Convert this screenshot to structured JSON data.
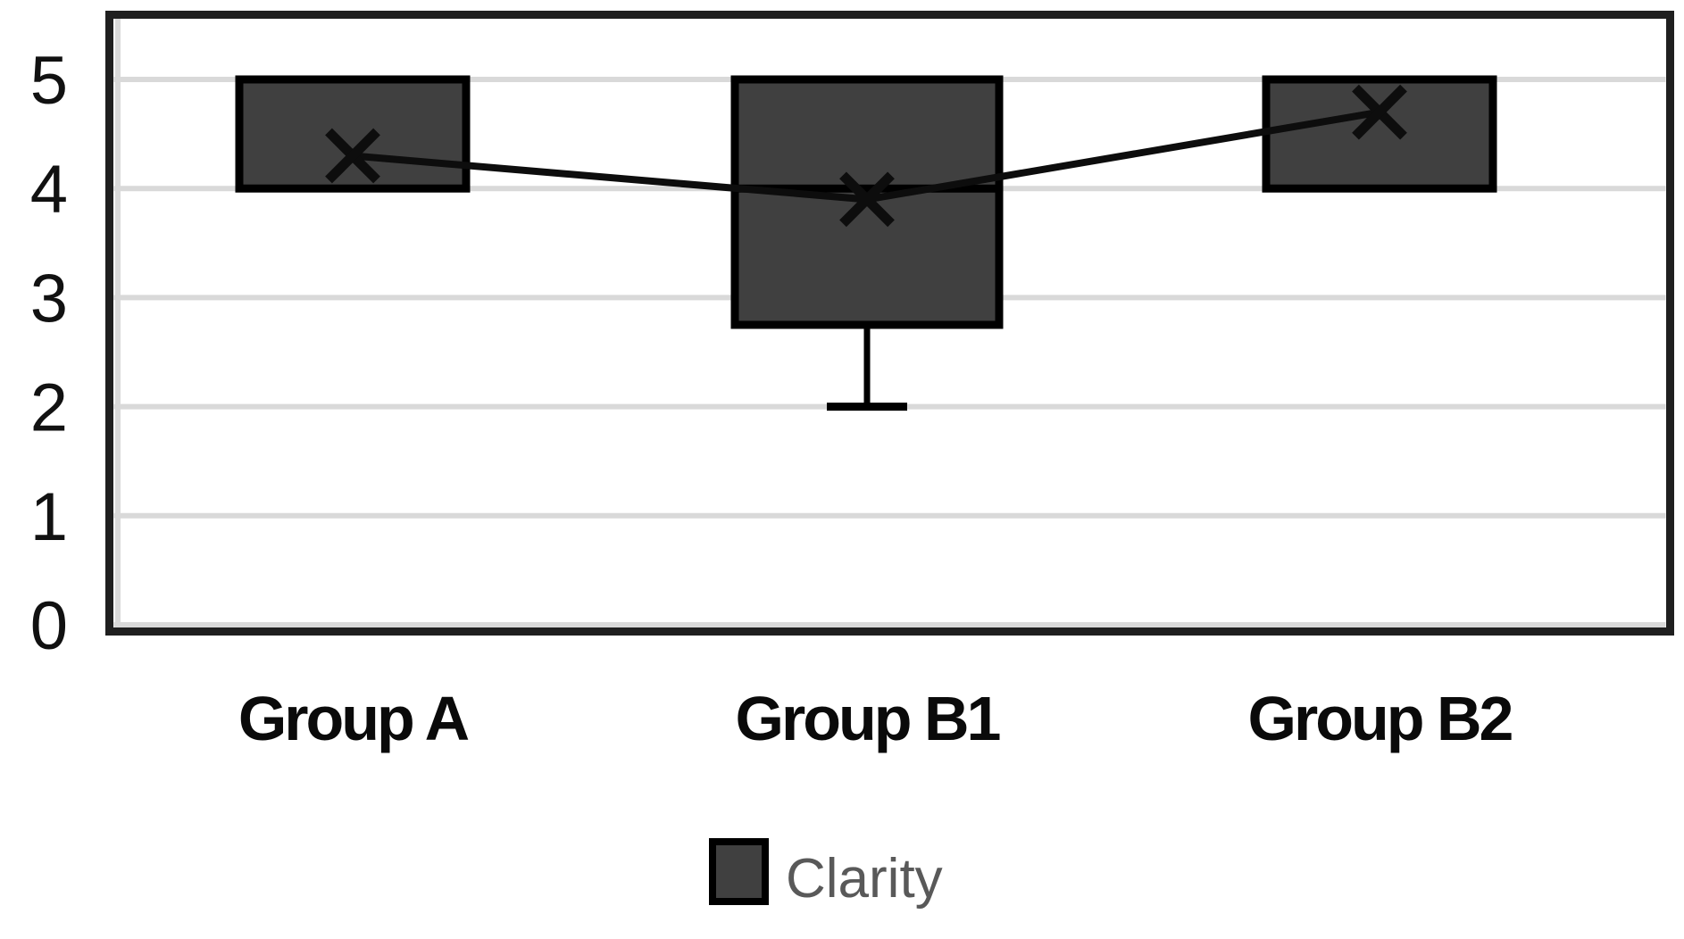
{
  "chart_data": {
    "type": "boxplot",
    "title": "",
    "categories": [
      "Group A",
      "Group B1",
      "Group B2"
    ],
    "y_axis": {
      "min": 0,
      "max": 5.6,
      "major_unit": 1,
      "ticks": [
        0,
        1,
        2,
        3,
        4,
        5
      ],
      "gridlines": true
    },
    "series_name": "Clarity",
    "groups": [
      {
        "label": "Group A",
        "q1": 4,
        "q3": 5,
        "median": null,
        "median_line_visible": false,
        "whisker_low": null,
        "whisker_high": null,
        "mean": 4.3
      },
      {
        "label": "Group B1",
        "q1": 2.75,
        "q3": 5,
        "median": 4,
        "median_line_visible": true,
        "whisker_low": 2,
        "whisker_high": null,
        "mean": 3.9
      },
      {
        "label": "Group B2",
        "q1": 4,
        "q3": 5,
        "median": null,
        "median_line_visible": false,
        "whisker_low": null,
        "whisker_high": null,
        "mean": 4.7
      }
    ],
    "mean_markers": {
      "shape": "x",
      "connected_by_line": true
    },
    "legend": {
      "label": "Clarity",
      "position": "bottom"
    },
    "colors": {
      "box_fill": "#404040",
      "box_border": "#000000",
      "mean_line": "#0d0d0d",
      "gridline": "#d9d9d9",
      "axis_line": "#d9d9d9",
      "plot_border": "#1f1f1f",
      "tick_label": "#111111",
      "category_label": "#0a0a0a",
      "legend_text": "#595959",
      "background": "#ffffff"
    }
  }
}
